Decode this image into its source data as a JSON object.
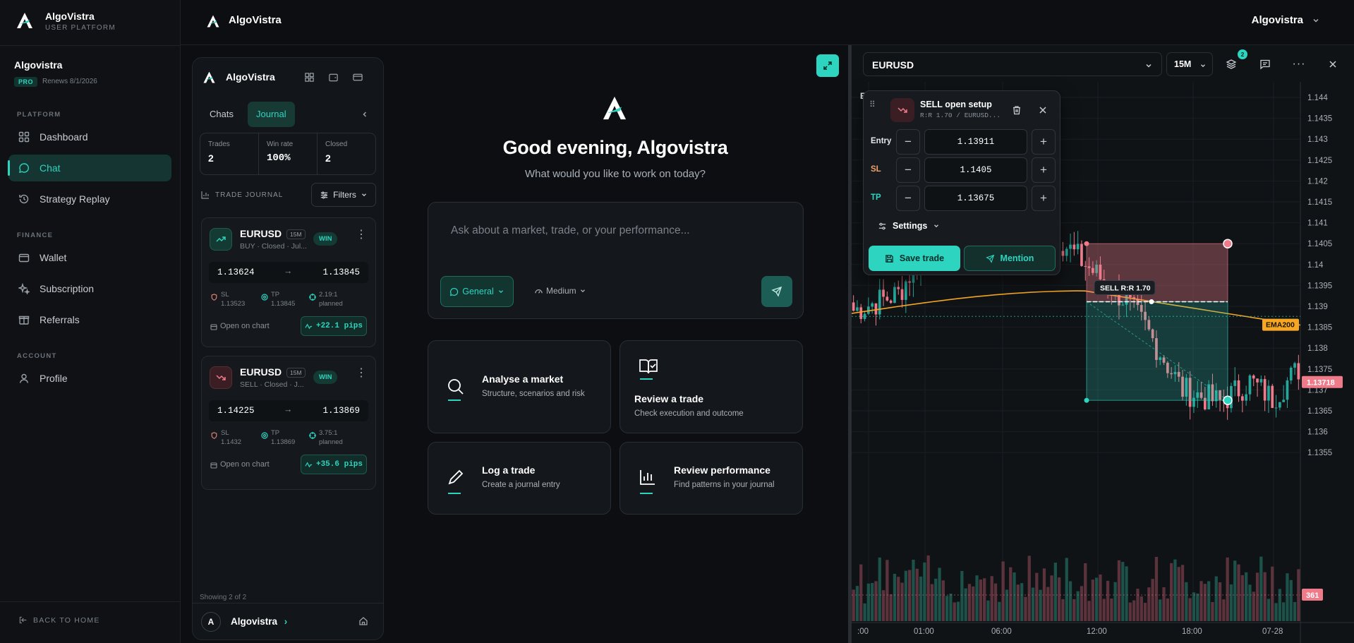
{
  "sidebar": {
    "brand": "AlgoVistra",
    "brand_sub": "USER PLATFORM",
    "user_name": "Algovistra",
    "plan_badge": "PRO",
    "renews": "Renews 8/1/2026",
    "sections": {
      "platform": "PLATFORM",
      "finance": "FINANCE",
      "account": "ACCOUNT"
    },
    "items": [
      {
        "label": "Dashboard",
        "icon": "grid-icon"
      },
      {
        "label": "Chat",
        "icon": "chat-icon",
        "active": true
      },
      {
        "label": "Strategy Replay",
        "icon": "history-icon"
      },
      {
        "label": "Wallet",
        "icon": "wallet-icon"
      },
      {
        "label": "Subscription",
        "icon": "sparkles-icon"
      },
      {
        "label": "Referrals",
        "icon": "gift-icon"
      },
      {
        "label": "Profile",
        "icon": "user-icon"
      }
    ],
    "back_home": "BACK TO HOME"
  },
  "topbar": {
    "title": "AlgoVistra",
    "user": "Algovistra"
  },
  "journal": {
    "title": "AlgoVistra",
    "tabs": [
      "Chats",
      "Journal"
    ],
    "active_tab": "Journal",
    "stats": [
      {
        "label": "Trades",
        "value": "2"
      },
      {
        "label": "Win rate",
        "value": "100%"
      },
      {
        "label": "Closed",
        "value": "2"
      }
    ],
    "section_label": "TRADE JOURNAL",
    "filters_label": "Filters",
    "trades": [
      {
        "symbol": "EURUSD",
        "tf": "15M",
        "sub": "BUY · Closed · Jul...",
        "result": "WIN",
        "entry": "1.13624",
        "exit": "1.13845",
        "sl_label": "SL",
        "sl": "1.13523",
        "tp_label": "TP",
        "tp": "1.13845",
        "rr": "2.19:1",
        "rr_note": "planned",
        "open_chart": "Open on chart",
        "pips": "+22.1 pips",
        "direction": "buy"
      },
      {
        "symbol": "EURUSD",
        "tf": "15M",
        "sub": "SELL · Closed · J...",
        "result": "WIN",
        "entry": "1.14225",
        "exit": "1.13869",
        "sl_label": "SL",
        "sl": "1.1432",
        "tp_label": "TP",
        "tp": "1.13869",
        "rr": "3.75:1",
        "rr_note": "planned",
        "open_chart": "Open on chart",
        "pips": "+35.6 pips",
        "direction": "sell"
      }
    ],
    "showing": "Showing 2 of 2",
    "footer_user": "Algovistra",
    "avatar_letter": "A"
  },
  "center": {
    "greeting": "Good evening, Algovistra",
    "subtitle": "What would you like to work on today?",
    "placeholder": "Ask about a market, trade, or your performance...",
    "mode": "General",
    "depth": "Medium",
    "quick_actions": [
      {
        "title": "Analyse a market",
        "desc": "Structure, scenarios and risk",
        "icon": "search-icon"
      },
      {
        "title": "Review a trade",
        "desc": "Check execution and outcome",
        "icon": "book-check-icon"
      },
      {
        "title": "Log a trade",
        "desc": "Create a journal entry",
        "icon": "pen-icon"
      },
      {
        "title": "Review performance",
        "desc": "Find patterns in your journal",
        "icon": "bar-chart-icon"
      }
    ]
  },
  "chart": {
    "symbol": "EURUSD",
    "timeframe": "15M",
    "layers_badge": "2",
    "price_ticks": [
      "1.144",
      "1.1435",
      "1.143",
      "1.1425",
      "1.142",
      "1.1415",
      "1.141",
      "1.1405",
      "1.14",
      "1.1395",
      "1.139",
      "1.1385",
      "1.138",
      "1.1375",
      "1.137",
      "1.1365",
      "1.136",
      "1.1355"
    ],
    "time_ticks": [
      ":00",
      "01:00",
      "06:00",
      "12:00",
      "18:00",
      "07-28"
    ],
    "current_price": "1.13718",
    "volume_label": "361",
    "ema_label": "EMA200",
    "rr_label": "SELL R:R 1.70",
    "hidden_label": "E",
    "colors": {
      "up": "#26a69a",
      "down": "#ef7a8a",
      "ema": "#f5a623",
      "accent": "#2dd4bf"
    }
  },
  "setup": {
    "title": "SELL open setup",
    "subtitle": "R:R 1.70 / EURUSD...",
    "rows": [
      {
        "label": "Entry",
        "value": "1.13911",
        "color": "#e6e8eb"
      },
      {
        "label": "SL",
        "value": "1.1405",
        "color": "#f0a06a"
      },
      {
        "label": "TP",
        "value": "1.13675",
        "color": "#2dd4bf"
      }
    ],
    "settings_label": "Settings",
    "save_label": "Save trade",
    "mention_label": "Mention"
  }
}
